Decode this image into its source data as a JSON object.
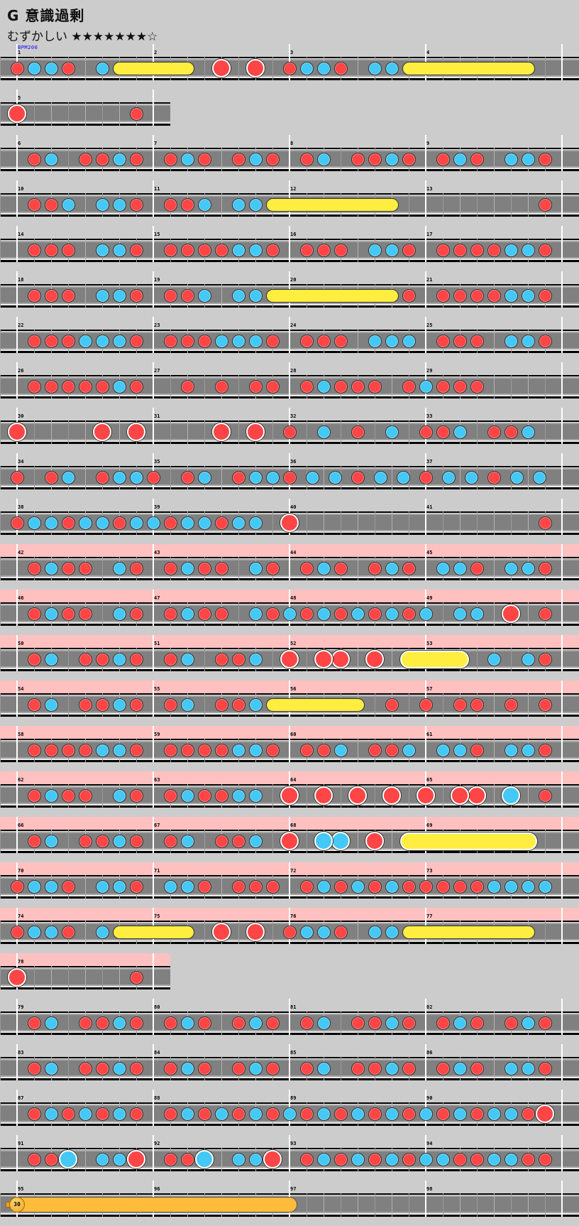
{
  "header": {
    "title_prefix": "G",
    "title": "意識過剰",
    "difficulty": "むずかしい",
    "stars": "★★★★★★★☆"
  },
  "colors": {
    "background": "#cccccc",
    "don": "#ff4545",
    "ka": "#44c8f5",
    "roll": "#ffee40",
    "balloon": "#ffbb3a",
    "gogo": "#ffc0c0",
    "bpm_label": "#0000ff"
  },
  "legend_notation": {
    "1": "don",
    "2": "ka",
    "3": "big-don",
    "4": "big-ka",
    "5": "roll-start",
    "6": "big-roll-start",
    "7": "balloon-start",
    "8": "roll-end"
  },
  "rows": [
    {
      "gogo": false,
      "measures": [
        {
          "num": "1",
          "notes": "12210250",
          "bpm": "BPM200"
        },
        {
          "num": "2",
          "notes": "00803030"
        },
        {
          "num": "3",
          "notes": "12210225"
        },
        {
          "num": "4",
          "notes": "00000080"
        }
      ]
    },
    {
      "gogo": false,
      "measures": [
        {
          "num": "5",
          "notes": "30000001"
        }
      ]
    },
    {
      "gogo": false,
      "measures": [
        {
          "num": "6",
          "notes": "01201121"
        },
        {
          "num": "7",
          "notes": "01210121"
        },
        {
          "num": "8",
          "notes": "01201121"
        },
        {
          "num": "9",
          "notes": "01210221"
        }
      ]
    },
    {
      "gogo": false,
      "measures": [
        {
          "num": "10",
          "notes": "01120221"
        },
        {
          "num": "11",
          "notes": "01120225"
        },
        {
          "num": "12",
          "notes": "00000080"
        },
        {
          "num": "13",
          "notes": "00000001"
        }
      ]
    },
    {
      "gogo": false,
      "measures": [
        {
          "num": "14",
          "notes": "01110221"
        },
        {
          "num": "15",
          "notes": "01111221"
        },
        {
          "num": "16",
          "notes": "01110221"
        },
        {
          "num": "17",
          "notes": "01111221"
        }
      ]
    },
    {
      "gogo": false,
      "measures": [
        {
          "num": "18",
          "notes": "01110221"
        },
        {
          "num": "19",
          "notes": "01120225"
        },
        {
          "num": "20",
          "notes": "00000081"
        },
        {
          "num": "21",
          "notes": "01111221"
        }
      ]
    },
    {
      "gogo": false,
      "measures": [
        {
          "num": "22",
          "notes": "01112221"
        },
        {
          "num": "23",
          "notes": "01112221"
        },
        {
          "num": "24",
          "notes": "01110222"
        },
        {
          "num": "25",
          "notes": "01110221"
        }
      ]
    },
    {
      "gogo": false,
      "measures": [
        {
          "num": "26",
          "notes": "01111121"
        },
        {
          "num": "27",
          "notes": "00101011"
        },
        {
          "num": "28",
          "notes": "01211101"
        },
        {
          "num": "29",
          "notes": "21110000"
        }
      ]
    },
    {
      "gogo": false,
      "measures": [
        {
          "num": "30",
          "notes": "30000303"
        },
        {
          "num": "31",
          "notes": "00003030"
        },
        {
          "num": "32",
          "notes": "10201020"
        },
        {
          "num": "33",
          "notes": "11201120"
        }
      ]
    },
    {
      "gogo": false,
      "measures": [
        {
          "num": "34",
          "notes": "10120122"
        },
        {
          "num": "35",
          "notes": "10120122"
        },
        {
          "num": "36",
          "notes": "122122"
        },
        {
          "num": "37",
          "notes": "122122"
        }
      ]
    },
    {
      "gogo": false,
      "measures": [
        {
          "num": "38",
          "notes": "12212212"
        },
        {
          "num": "39",
          "notes": "21221220"
        },
        {
          "num": "40",
          "notes": "30000000"
        },
        {
          "num": "41",
          "notes": "00000001"
        }
      ]
    },
    {
      "gogo": true,
      "measures": [
        {
          "num": "42",
          "notes": "01211021"
        },
        {
          "num": "43",
          "notes": "01211021"
        },
        {
          "num": "44",
          "notes": "01210121"
        },
        {
          "num": "45",
          "notes": "02210221"
        }
      ]
    },
    {
      "gogo": true,
      "measures": [
        {
          "num": "46",
          "notes": "01211021"
        },
        {
          "num": "47",
          "notes": "01211021"
        },
        {
          "num": "48",
          "notes": "21212121"
        },
        {
          "num": "49",
          "notes": "20220301"
        }
      ]
    },
    {
      "gogo": true,
      "measures": [
        {
          "num": "50",
          "notes": "01201121"
        },
        {
          "num": "51",
          "notes": "01201120"
        },
        {
          "num": "52",
          "notes": "30330306"
        },
        {
          "num": "53",
          "notes": "00802021"
        }
      ]
    },
    {
      "gogo": true,
      "measures": [
        {
          "num": "54",
          "notes": "01201121"
        },
        {
          "num": "55",
          "notes": "01201125"
        },
        {
          "num": "56",
          "notes": "00008010"
        },
        {
          "num": "57",
          "notes": "10110101"
        }
      ]
    },
    {
      "gogo": true,
      "measures": [
        {
          "num": "58",
          "notes": "01111221"
        },
        {
          "num": "59",
          "notes": "01111221"
        },
        {
          "num": "60",
          "notes": "01120112"
        },
        {
          "num": "61",
          "notes": "02210221"
        }
      ]
    },
    {
      "gogo": true,
      "measures": [
        {
          "num": "62",
          "notes": "01211021"
        },
        {
          "num": "63",
          "notes": "01211220"
        },
        {
          "num": "64",
          "notes": "30303030"
        },
        {
          "num": "65",
          "notes": "30330401"
        }
      ]
    },
    {
      "gogo": true,
      "measures": [
        {
          "num": "66",
          "notes": "01201121"
        },
        {
          "num": "67",
          "notes": "01201120"
        },
        {
          "num": "68",
          "notes": "30440306"
        },
        {
          "num": "69",
          "notes": "00000080"
        }
      ]
    },
    {
      "gogo": true,
      "measures": [
        {
          "num": "70",
          "notes": "12210221"
        },
        {
          "num": "71",
          "notes": "02210111"
        },
        {
          "num": "72",
          "notes": "01212121"
        },
        {
          "num": "73",
          "notes": "11112222"
        }
      ]
    },
    {
      "gogo": true,
      "measures": [
        {
          "num": "74",
          "notes": "12210250"
        },
        {
          "num": "75",
          "notes": "00803030"
        },
        {
          "num": "76",
          "notes": "12210225"
        },
        {
          "num": "77",
          "notes": "00000080"
        }
      ]
    },
    {
      "gogo": true,
      "measures": [
        {
          "num": "78",
          "notes": "30000001"
        }
      ]
    },
    {
      "gogo": false,
      "measures": [
        {
          "num": "79",
          "notes": "01201121"
        },
        {
          "num": "80",
          "notes": "01210121"
        },
        {
          "num": "81",
          "notes": "01201121"
        },
        {
          "num": "82",
          "notes": "01210121"
        }
      ]
    },
    {
      "gogo": false,
      "measures": [
        {
          "num": "83",
          "notes": "01201121"
        },
        {
          "num": "84",
          "notes": "01210121"
        },
        {
          "num": "85",
          "notes": "01201121"
        },
        {
          "num": "86",
          "notes": "01210221"
        }
      ]
    },
    {
      "gogo": false,
      "measures": [
        {
          "num": "87",
          "notes": "01212121"
        },
        {
          "num": "88",
          "notes": "01212121"
        },
        {
          "num": "89",
          "notes": "21212121"
        },
        {
          "num": "90",
          "notes": "21212213"
        }
      ]
    },
    {
      "gogo": false,
      "measures": [
        {
          "num": "91",
          "notes": "01140223"
        },
        {
          "num": "92",
          "notes": "01140223"
        },
        {
          "num": "93",
          "notes": "01212121"
        },
        {
          "num": "94",
          "notes": "22112211"
        }
      ]
    },
    {
      "gogo": false,
      "measures": [
        {
          "num": "95",
          "notes": "70000000",
          "balloon_count": "30"
        },
        {
          "num": "96",
          "notes": "00000000"
        },
        {
          "num": "97",
          "notes": "80000000"
        },
        {
          "num": "98",
          "notes": "00000000"
        }
      ]
    }
  ]
}
